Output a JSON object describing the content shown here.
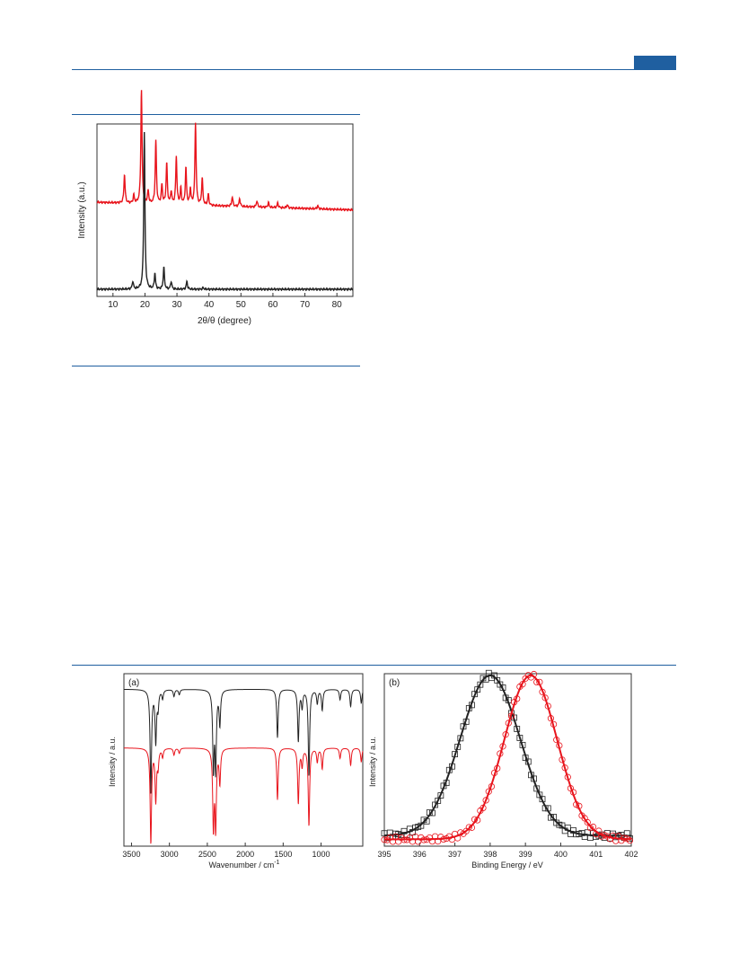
{
  "page": {
    "header_rule_color": "#1f5fa0",
    "header_tab_color": "#1f5fa0"
  },
  "chart_data": [
    {
      "id": "xrd",
      "type": "line",
      "xlabel": "2θ/θ (degree)",
      "ylabel": "Intensity (a.u.)",
      "xlim": [
        5,
        85
      ],
      "xticks": [
        10,
        20,
        30,
        40,
        50,
        60,
        70,
        80
      ],
      "yticks": [],
      "grid": false,
      "series": [
        {
          "color": "#e8141c",
          "baseline": 0.55,
          "slope": -0.0006,
          "peaks": [
            [
              13.6,
              0.18
            ],
            [
              16.5,
              0.05
            ],
            [
              18.9,
              0.72
            ],
            [
              21.0,
              0.08
            ],
            [
              23.4,
              0.4
            ],
            [
              25.3,
              0.12
            ],
            [
              26.8,
              0.26
            ],
            [
              28.2,
              0.08
            ],
            [
              29.8,
              0.3
            ],
            [
              31.2,
              0.1
            ],
            [
              32.8,
              0.23
            ],
            [
              34.2,
              0.1
            ],
            [
              35.8,
              0.52
            ],
            [
              37.9,
              0.17
            ],
            [
              39.8,
              0.07
            ],
            [
              47.3,
              0.06
            ],
            [
              49.6,
              0.05
            ],
            [
              55.0,
              0.04
            ],
            [
              58.6,
              0.03
            ],
            [
              61.5,
              0.03
            ],
            [
              64.5,
              0.02
            ],
            [
              74.0,
              0.02
            ]
          ]
        },
        {
          "color": "#222222",
          "baseline": 0.0,
          "slope": 0,
          "peaks": [
            [
              16.2,
              0.05
            ],
            [
              19.8,
              0.99
            ],
            [
              23.1,
              0.1
            ],
            [
              25.9,
              0.14
            ],
            [
              28.2,
              0.05
            ],
            [
              33.1,
              0.05
            ],
            [
              38.2,
              0.01
            ]
          ]
        }
      ]
    },
    {
      "id": "ir",
      "type": "line",
      "panel_label": "(a)",
      "xlabel": "Wavenumber / cm",
      "xlabel_sup": "-1",
      "ylabel": "Intensity / a.u.",
      "xlim": [
        3600,
        450
      ],
      "xticks": [
        3500,
        3000,
        2500,
        2000,
        1500,
        1000
      ],
      "grid": false,
      "series": [
        {
          "color": "#222222",
          "baseline": 0.91,
          "bands": [
            [
              3245,
              0.6
            ],
            [
              3180,
              0.3
            ],
            [
              3150,
              0.1
            ],
            [
              3090,
              0.05
            ],
            [
              2940,
              0.04
            ],
            [
              2870,
              0.03
            ],
            [
              2420,
              0.45
            ],
            [
              2390,
              0.45
            ],
            [
              2335,
              0.2
            ],
            [
              1575,
              0.28
            ],
            [
              1300,
              0.3
            ],
            [
              1250,
              0.1
            ],
            [
              1160,
              0.5
            ],
            [
              1050,
              0.08
            ],
            [
              985,
              0.12
            ],
            [
              750,
              0.06
            ],
            [
              610,
              0.1
            ],
            [
              470,
              0.08
            ]
          ]
        },
        {
          "color": "#e8141c",
          "baseline": 0.57,
          "bands": [
            [
              3245,
              0.55
            ],
            [
              3180,
              0.3
            ],
            [
              3150,
              0.1
            ],
            [
              3090,
              0.05
            ],
            [
              2940,
              0.04
            ],
            [
              2870,
              0.03
            ],
            [
              2420,
              0.45
            ],
            [
              2390,
              0.45
            ],
            [
              2335,
              0.2
            ],
            [
              1575,
              0.3
            ],
            [
              1300,
              0.32
            ],
            [
              1250,
              0.1
            ],
            [
              1160,
              0.45
            ],
            [
              1050,
              0.08
            ],
            [
              985,
              0.12
            ],
            [
              750,
              0.06
            ],
            [
              610,
              0.1
            ],
            [
              470,
              0.08
            ]
          ]
        }
      ]
    },
    {
      "id": "xps",
      "type": "scatter",
      "panel_label": "(b)",
      "xlabel": "Binding Energy / eV",
      "ylabel": "Intensity / a.u.",
      "xlim": [
        395,
        402
      ],
      "xticks": [
        395,
        396,
        397,
        398,
        399,
        400,
        401,
        402
      ],
      "grid": false,
      "series": [
        {
          "color": "#222222",
          "marker": "square",
          "peak_center": 398.0,
          "peak_width": 0.85,
          "peak_height": 0.93,
          "offset": 0.06
        },
        {
          "color": "#e8141c",
          "marker": "circle",
          "peak_center": 399.15,
          "peak_width": 0.75,
          "peak_height": 0.95,
          "offset": 0.04
        }
      ]
    }
  ]
}
